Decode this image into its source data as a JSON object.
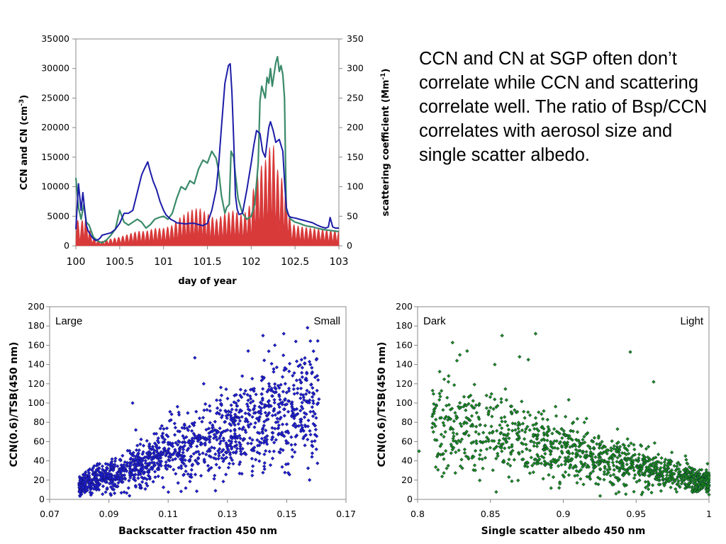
{
  "description": "CCN and CN at SGP often don’t correlate while CCN and scattering correlate well. The ratio of Bsp/CCN correlates with aerosol size and single scatter albedo.",
  "chart_data": [
    {
      "type": "line",
      "xlabel": "day of year",
      "ylabel_parts": [
        "CCN and CN (cm",
        "-3",
        ")"
      ],
      "y2label_parts": [
        "scattering coefficient (Mm",
        "-1",
        ")"
      ],
      "xlim": [
        100,
        103
      ],
      "ylim": [
        0,
        35000
      ],
      "y2lim": [
        0,
        350
      ],
      "xticks": [
        "100",
        "100.5",
        "101",
        "101.5",
        "102",
        "102.5",
        "103"
      ],
      "yticks": [
        "0",
        "5000",
        "10000",
        "15000",
        "20000",
        "25000",
        "30000",
        "35000"
      ],
      "y2ticks": [
        "0",
        "50",
        "100",
        "150",
        "200",
        "250",
        "300",
        "350"
      ],
      "grid": false,
      "series": [
        {
          "role": "CN",
          "axis": "left",
          "color": "#1c1ca8",
          "x": [
            100.0,
            100.03,
            100.06,
            100.08,
            100.12,
            100.14,
            100.17,
            100.2,
            100.23,
            100.27,
            100.3,
            100.35,
            100.4,
            100.45,
            100.5,
            100.55,
            100.6,
            100.65,
            100.7,
            100.75,
            100.78,
            100.82,
            100.85,
            100.88,
            100.92,
            100.96,
            101.0,
            101.03,
            101.06,
            101.08,
            101.12,
            101.15,
            101.2,
            101.25,
            101.3,
            101.35,
            101.4,
            101.45,
            101.5,
            101.55,
            101.6,
            101.63,
            101.66,
            101.7,
            101.72,
            101.74,
            101.76,
            101.78,
            101.8,
            101.82,
            101.84,
            101.86,
            101.9,
            101.95,
            102.0,
            102.03,
            102.06,
            102.1,
            102.13,
            102.16,
            102.2,
            102.22,
            102.25,
            102.28,
            102.32,
            102.36,
            102.38,
            102.4,
            102.43,
            102.46,
            102.5,
            102.55,
            102.6,
            102.65,
            102.7,
            102.75,
            102.8,
            102.85,
            102.88,
            102.9,
            102.93,
            102.96,
            103.0
          ],
          "y": [
            2800,
            10500,
            6000,
            9000,
            3500,
            2500,
            1800,
            1200,
            900,
            1200,
            1800,
            2000,
            2200,
            2800,
            3800,
            5500,
            5500,
            6000,
            9000,
            12000,
            13000,
            14200,
            12500,
            11000,
            9500,
            7500,
            6000,
            5200,
            4800,
            4500,
            4200,
            3900,
            3800,
            3700,
            3800,
            3800,
            3600,
            3400,
            3800,
            6000,
            9500,
            14000,
            20000,
            27500,
            29000,
            30500,
            30800,
            26000,
            18000,
            8500,
            6200,
            5300,
            5500,
            9500,
            14000,
            17000,
            19500,
            19000,
            16000,
            15000,
            20000,
            21000,
            19500,
            17500,
            18000,
            16000,
            11000,
            6500,
            5000,
            4800,
            4700,
            4500,
            4300,
            4100,
            3900,
            3500,
            3200,
            3000,
            3200,
            4800,
            3200,
            3000,
            3000
          ]
        },
        {
          "role": "CCN",
          "axis": "left",
          "color": "#d83a3a",
          "x": [
            100.0,
            100.05,
            100.1,
            100.15,
            100.2,
            100.3,
            100.4,
            100.5,
            100.6,
            100.7,
            100.8,
            100.9,
            101.0,
            101.1,
            101.2,
            101.3,
            101.4,
            101.5,
            101.6,
            101.7,
            101.8,
            101.9,
            101.95,
            102.0,
            102.05,
            102.1,
            102.15,
            102.2,
            102.25,
            102.3,
            102.35,
            102.4,
            102.45,
            102.5,
            102.6,
            102.7,
            102.8,
            102.9,
            103.0
          ],
          "y": [
            5000,
            3500,
            5500,
            3000,
            1200,
            800,
            1200,
            1500,
            2000,
            2500,
            2500,
            3000,
            3000,
            3500,
            5000,
            6000,
            6500,
            5500,
            4500,
            5500,
            6000,
            5200,
            6000,
            7500,
            12000,
            13500,
            14000,
            16500,
            17500,
            13000,
            11500,
            9500,
            4000,
            3500,
            3200,
            3000,
            2800,
            2600,
            2500
          ]
        },
        {
          "role": "scattering",
          "axis": "right",
          "color": "#3a8a6a",
          "x": [
            100.0,
            100.03,
            100.06,
            100.09,
            100.12,
            100.15,
            100.2,
            100.25,
            100.3,
            100.35,
            100.4,
            100.45,
            100.5,
            100.55,
            100.6,
            100.65,
            100.7,
            100.75,
            100.8,
            100.85,
            100.9,
            100.95,
            101.0,
            101.05,
            101.1,
            101.15,
            101.2,
            101.25,
            101.3,
            101.35,
            101.4,
            101.45,
            101.5,
            101.55,
            101.6,
            101.63,
            101.66,
            101.7,
            101.72,
            101.75,
            101.77,
            101.8,
            101.82,
            101.85,
            101.9,
            101.95,
            102.0,
            102.04,
            102.08,
            102.1,
            102.12,
            102.14,
            102.16,
            102.18,
            102.2,
            102.22,
            102.24,
            102.26,
            102.28,
            102.3,
            102.32,
            102.34,
            102.36,
            102.38,
            102.4,
            102.45,
            102.5,
            102.55,
            102.6,
            102.65,
            102.7,
            102.75,
            102.8,
            102.85,
            102.9,
            102.95,
            103.0
          ],
          "y": [
            115,
            65,
            45,
            70,
            40,
            35,
            15,
            8,
            5,
            10,
            18,
            28,
            60,
            40,
            35,
            40,
            45,
            40,
            30,
            36,
            45,
            48,
            50,
            45,
            55,
            80,
            100,
            95,
            110,
            105,
            130,
            145,
            140,
            160,
            148,
            125,
            85,
            55,
            65,
            70,
            160,
            150,
            120,
            80,
            55,
            45,
            50,
            70,
            140,
            245,
            270,
            260,
            250,
            285,
            275,
            300,
            270,
            290,
            310,
            320,
            295,
            305,
            290,
            250,
            60,
            45,
            40,
            38,
            35,
            33,
            32,
            30,
            28,
            27,
            26,
            25,
            24
          ]
        }
      ]
    },
    {
      "type": "scatter",
      "xlabel": "Backscatter fraction 450 nm",
      "ylabel": "CCN(0.6)/TSB(450 nm)",
      "xlim": [
        0.07,
        0.17
      ],
      "ylim": [
        0,
        200
      ],
      "xticks": [
        "0.07",
        "0.09",
        "0.11",
        "0.13",
        "0.15",
        "0.17"
      ],
      "yticks": [
        "0",
        "20",
        "40",
        "60",
        "80",
        "100",
        "120",
        "140",
        "160",
        "180",
        "200"
      ],
      "corner_labels": {
        "left": "Large",
        "right": "Small"
      },
      "color": "#1f1fd0",
      "distribution": {
        "n": 1350,
        "xrange": [
          0.08,
          0.161
        ],
        "y_at_x_min": 15,
        "y_at_x_max": 100
      },
      "outliers": [
        [
          0.142,
          170
        ],
        [
          0.149,
          172
        ],
        [
          0.155,
          145
        ],
        [
          0.16,
          145
        ],
        [
          0.158,
          140
        ],
        [
          0.16,
          52
        ],
        [
          0.153,
          75
        ],
        [
          0.152,
          88
        ],
        [
          0.148,
          100
        ],
        [
          0.098,
          100
        ],
        [
          0.119,
          147
        ],
        [
          0.137,
          154
        ],
        [
          0.146,
          160
        ],
        [
          0.139,
          115
        ],
        [
          0.144,
          120
        ],
        [
          0.135,
          128
        ],
        [
          0.128,
          108
        ],
        [
          0.124,
          97
        ],
        [
          0.122,
          120
        ]
      ]
    },
    {
      "type": "scatter",
      "xlabel": "Single scatter albedo 450 nm",
      "ylabel": "CCN(0.6)/TSB(450 nm)",
      "xlim": [
        0.8,
        1.0
      ],
      "ylim": [
        0,
        200
      ],
      "xticks": [
        "0.8",
        "0.85",
        "0.9",
        "0.95",
        "1"
      ],
      "yticks": [
        "0",
        "20",
        "40",
        "60",
        "80",
        "100",
        "120",
        "140",
        "160",
        "180",
        "200"
      ],
      "corner_labels": {
        "left": "Dark",
        "right": "Light"
      },
      "color": "#1a8a1a",
      "distribution": {
        "n": 1200,
        "xrange": [
          0.81,
          1.0
        ],
        "y_at_x_min": 80,
        "y_at_x_max": 18
      },
      "outliers": [
        [
          0.858,
          170
        ],
        [
          0.881,
          172
        ],
        [
          0.834,
          154
        ],
        [
          0.829,
          150
        ],
        [
          0.827,
          144
        ],
        [
          0.801,
          50
        ],
        [
          0.818,
          65
        ],
        [
          0.823,
          48
        ],
        [
          0.836,
          82
        ],
        [
          0.843,
          60
        ],
        [
          0.946,
          153
        ],
        [
          0.962,
          122
        ],
        [
          0.876,
          145
        ],
        [
          0.87,
          148
        ],
        [
          0.999,
          37
        ],
        [
          0.995,
          12
        ],
        [
          0.84,
          70
        ],
        [
          0.853,
          140
        ]
      ]
    }
  ]
}
